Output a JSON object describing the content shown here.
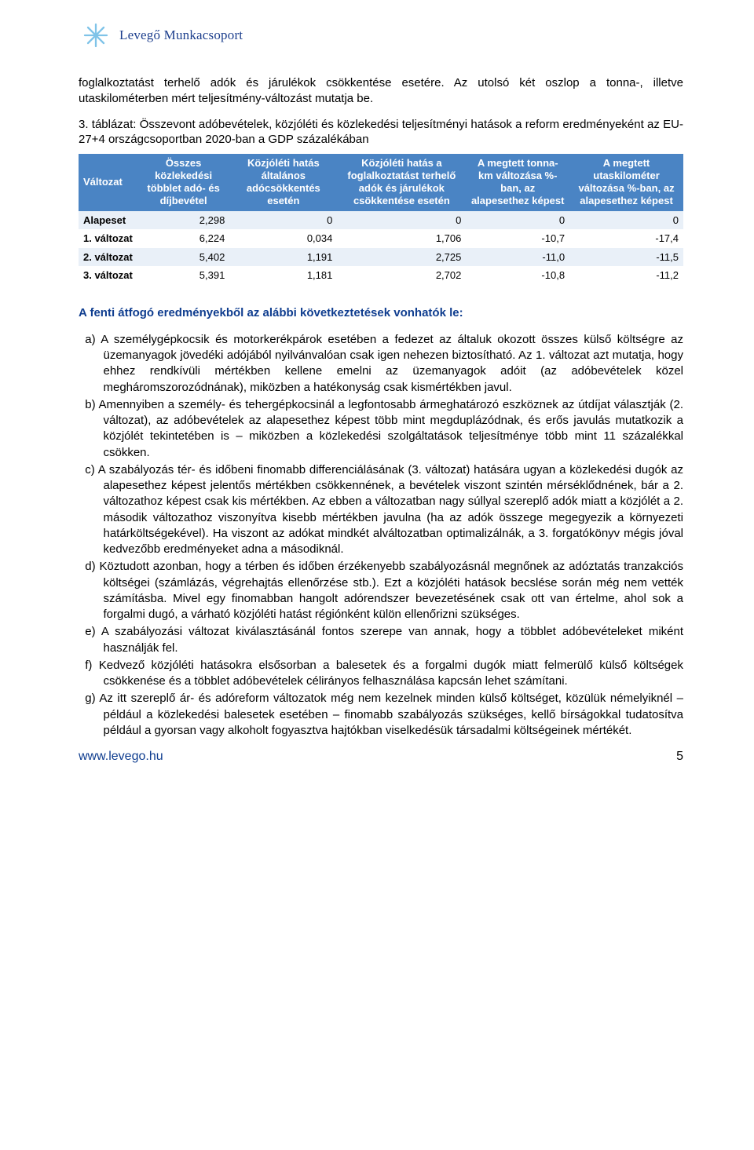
{
  "colors": {
    "brand_blue": "#1d3f8d",
    "heading_blue": "#0f3d8f",
    "table_header_bg": "#4a84c4",
    "table_header_fg": "#ffffff",
    "table_stripe_bg": "#e9f0f8",
    "text": "#000000",
    "background": "#ffffff"
  },
  "logo": {
    "text": "Levegő Munkacsoport"
  },
  "intro_paragraph": "foglalkoztatást terhelő adók és járulékok csökkentése esetére. Az utolsó két oszlop a tonna-, illetve utaskilométerben mért teljesítmény-változást mutatja be.",
  "table_caption": "3. táblázat: Összevont adóbevételek, közjóléti és közlekedési teljesítményi hatások a reform eredményeként az EU-27+4 országcsoportban 2020-ban a GDP százalékában",
  "table": {
    "type": "table",
    "header_bg": "#4a84c4",
    "header_fg": "#ffffff",
    "stripe_bg": "#e9f0f8",
    "font_size": 13,
    "columns": [
      "Változat",
      "Összes közlekedési többlet adó- és díjbevétel",
      "Közjóléti hatás általános adócsökkentés esetén",
      "Közjóléti hatás a foglalkoztatást terhelő adók és járulékok csökkentése esetén",
      "A megtett tonna-km változása %-ban, az alapesethez képest",
      "A megtett utaskilométer változása %-ban, az alapesethez képest"
    ],
    "rows": [
      {
        "label": "Alapeset",
        "cells": [
          "2,298",
          "0",
          "0",
          "0",
          "0"
        ],
        "striped": true
      },
      {
        "label": "1. változat",
        "cells": [
          "6,224",
          "0,034",
          "1,706",
          "-10,7",
          "-17,4"
        ],
        "striped": false
      },
      {
        "label": "2. változat",
        "cells": [
          "5,402",
          "1,191",
          "2,725",
          "-11,0",
          "-11,5"
        ],
        "striped": true
      },
      {
        "label": "3. változat",
        "cells": [
          "5,391",
          "1,181",
          "2,702",
          "-10,8",
          "-11,2"
        ],
        "striped": false
      }
    ]
  },
  "section_title": "A fenti átfogó eredményekből az alábbi következtetések vonhatók le:",
  "list_items": [
    "a) A személygépkocsik és motorkerékpárok esetében a fedezet az általuk okozott összes külső költségre az üzemanyagok jövedéki adójából nyilvánvalóan csak igen nehezen biztosítható. Az 1. változat azt mutatja, hogy ehhez rendkívüli mértékben kellene emelni az üzemanyagok adóit (az adóbevételek közel megháromszorozódnának), miközben a hatékonyság csak kismértékben javul.",
    "b) Amennyiben a személy- és tehergépkocsinál a legfontosabb ármeghatározó eszköznek az útdíjat választják (2. változat), az adóbevételek az alapesethez képest több mint megduplázódnak, és erős javulás mutatkozik a közjólét tekintetében is – miközben a közlekedési szolgáltatások teljesítménye több mint 11 százalékkal csökken.",
    "c) A szabályozás tér- és időbeni finomabb differenciálásának (3. változat) hatására ugyan a közlekedési dugók az alapesethez képest jelentős mértékben csökkennének, a bevételek viszont szintén mérséklődnének, bár a 2. változathoz képest csak kis mértékben. Az ebben a változatban nagy súllyal szereplő adók miatt a közjólét a 2. második változathoz viszonyítva kisebb mértékben javulna (ha az adók összege megegyezik a környezeti határköltségekével). Ha viszont az adókat mindkét alváltozatban optimalizálnák, a 3. forgatókönyv mégis jóval kedvezőbb eredményeket adna a másodiknál.",
    "d) Köztudott azonban, hogy a térben és időben érzékenyebb szabályozásnál megnőnek az adóztatás tranzakciós költségei (számlázás, végrehajtás ellenőrzése stb.). Ezt a közjóléti hatások becslése során még nem vették számításba. Mivel egy finomabban hangolt adórendszer bevezetésének csak ott van értelme, ahol sok a forgalmi dugó, a várható közjóléti hatást régiónként külön ellenőrizni szükséges.",
    "e) A szabályozási változat kiválasztásánál fontos szerepe van annak, hogy a többlet adóbevételeket miként használják fel.",
    "f) Kedvező közjóléti hatásokra elsősorban a balesetek és a forgalmi dugók miatt felmerülő külső költségek csökkenése és a többlet adóbevételek célirányos felhasználása kapcsán lehet számítani.",
    "g) Az itt szereplő ár- és adóreform változatok még nem kezelnek minden külső költséget, közülük némelyiknél – például a közlekedési balesetek esetében – finomabb szabályozás szükséges, kellő bírságokkal tudatosítva például a gyorsan vagy alkoholt fogyasztva hajtókban viselkedésük társadalmi költségeinek mértékét."
  ],
  "footer": {
    "url": "www.levego.hu",
    "page_number": "5"
  }
}
